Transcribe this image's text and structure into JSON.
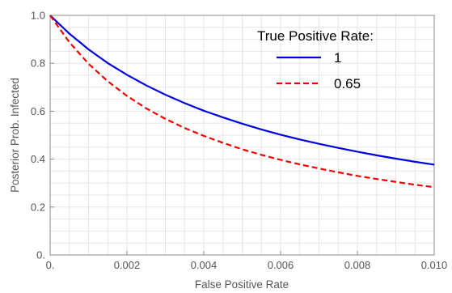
{
  "chart_data": {
    "type": "line",
    "title": "",
    "xlabel": "False Positive Rate",
    "ylabel": "Posterior Prob. Infected",
    "xlim": [
      0,
      0.01
    ],
    "ylim": [
      0,
      1.0
    ],
    "x_ticks": [
      0,
      0.002,
      0.004,
      0.006,
      0.008,
      0.01
    ],
    "x_tick_labels": [
      "0.",
      "0.002",
      "0.004",
      "0.006",
      "0.008",
      "0.010"
    ],
    "y_ticks": [
      0,
      0.2,
      0.4,
      0.6,
      0.8,
      1.0
    ],
    "y_tick_labels": [
      "0.",
      "0.2",
      "0.4",
      "0.6",
      "0.8",
      "1.0"
    ],
    "grid": true,
    "legend": {
      "title": "True Positive Rate:",
      "placement": "top-right"
    },
    "series": [
      {
        "name": "1",
        "color": "#0000dd",
        "dash": "solid",
        "x": [
          0,
          0.0005,
          0.001,
          0.0015,
          0.002,
          0.0025,
          0.003,
          0.0035,
          0.004,
          0.0045,
          0.005,
          0.0055,
          0.006,
          0.0065,
          0.007,
          0.0075,
          0.008,
          0.0085,
          0.009,
          0.0095,
          0.01
        ],
        "y": [
          1.0,
          0.924,
          0.858,
          0.801,
          0.752,
          0.708,
          0.669,
          0.634,
          0.602,
          0.574,
          0.548,
          0.524,
          0.502,
          0.482,
          0.464,
          0.447,
          0.431,
          0.416,
          0.402,
          0.389,
          0.377
        ]
      },
      {
        "name": "0.65",
        "color": "#ee0000",
        "dash": "dashed",
        "x": [
          0,
          0.0005,
          0.001,
          0.0015,
          0.002,
          0.0025,
          0.003,
          0.0035,
          0.004,
          0.0045,
          0.005,
          0.0055,
          0.006,
          0.0065,
          0.007,
          0.0075,
          0.008,
          0.0085,
          0.009,
          0.0095,
          0.01
        ],
        "y": [
          1.0,
          0.888,
          0.798,
          0.725,
          0.664,
          0.612,
          0.568,
          0.53,
          0.497,
          0.468,
          0.441,
          0.418,
          0.397,
          0.378,
          0.361,
          0.345,
          0.33,
          0.317,
          0.305,
          0.293,
          0.283
        ]
      }
    ]
  }
}
